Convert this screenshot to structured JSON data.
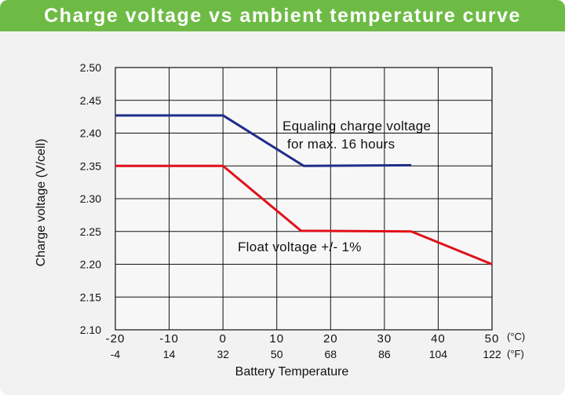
{
  "title": "Charge voltage vs ambient temperature curve",
  "colors": {
    "title_bar": "#6dbb45",
    "equalizing": "#1f2d8a",
    "float": "#e0101a"
  },
  "chart_data": {
    "type": "line",
    "title": "Charge voltage vs ambient temperature curve",
    "ylabel": "Charge voltage (V/cell)",
    "xlabel": "Battery Temperature",
    "ylim": [
      2.1,
      2.5
    ],
    "yticks": [
      "2.50",
      "2.45",
      "2.40",
      "2.35",
      "2.30",
      "2.25",
      "2.20",
      "2.15",
      "2.10"
    ],
    "xlim": [
      -20,
      50
    ],
    "xticks_c": [
      "-20",
      "-10",
      "0",
      "10",
      "20",
      "30",
      "40",
      "50"
    ],
    "xticks_f": [
      "-4",
      "14",
      "32",
      "50",
      "68",
      "86",
      "104",
      "122"
    ],
    "unit_c": "(°C)",
    "unit_f": "(°F)",
    "grid": true,
    "series": [
      {
        "key": "equalizing",
        "x": [
          -20,
          0,
          15,
          35
        ],
        "y": [
          2.427,
          2.427,
          2.35,
          2.351
        ]
      },
      {
        "key": "float",
        "x": [
          -20,
          0,
          14.5,
          35,
          50
        ],
        "y": [
          2.35,
          2.35,
          2.251,
          2.25,
          2.2
        ]
      }
    ],
    "annotations": {
      "equalizing_line1": "Equaling charge voltage",
      "equalizing_line2": "for max. 16 hours",
      "float": "Float voltage +/- 1%"
    }
  }
}
